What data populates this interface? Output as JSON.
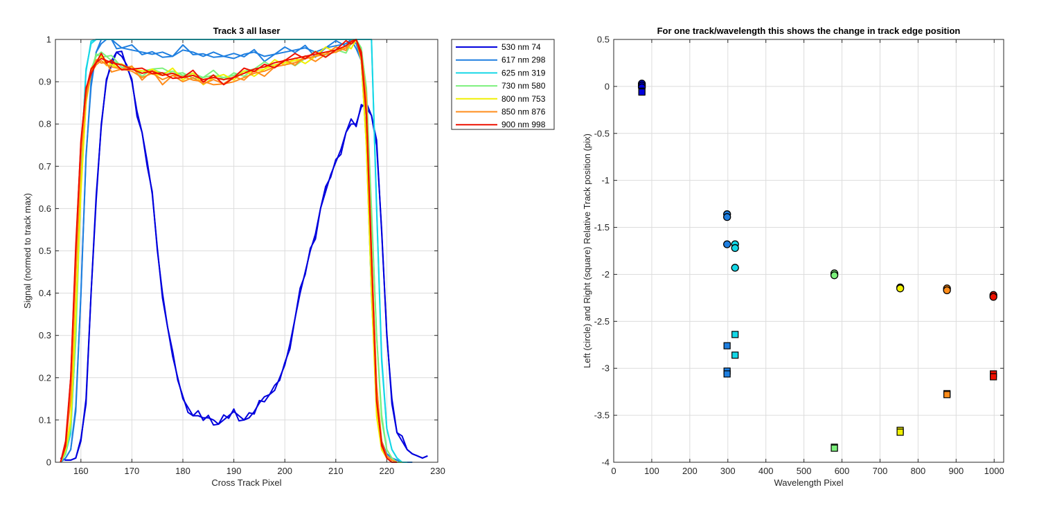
{
  "chart_data": [
    {
      "type": "line",
      "title": "Track 3  all laser",
      "xlabel": "Cross Track Pixel",
      "ylabel": "Signal (normed to track max)",
      "xlim": [
        155,
        230
      ],
      "ylim": [
        0,
        1
      ],
      "xticks": [
        160,
        170,
        180,
        190,
        200,
        210,
        220,
        230
      ],
      "yticks": [
        0,
        0.1,
        0.2,
        0.3,
        0.4,
        0.5,
        0.6,
        0.7,
        0.8,
        0.9,
        1
      ],
      "grid": true,
      "legend_position": "outside-top-right",
      "series": [
        {
          "name": "530 nm 74",
          "color": "#0000dd",
          "x": [
            156,
            157,
            158,
            159,
            160,
            161,
            162,
            163,
            164,
            165,
            166,
            167,
            168,
            169,
            170,
            171,
            172,
            173,
            174,
            175,
            176,
            177,
            178,
            179,
            180,
            181,
            182,
            183,
            184,
            185,
            186,
            187,
            188,
            189,
            190,
            191,
            192,
            193,
            194,
            195,
            196,
            197,
            198,
            199,
            200,
            201,
            202,
            203,
            204,
            205,
            206,
            207,
            208,
            209,
            210,
            211,
            212,
            213,
            214,
            215,
            216,
            217,
            218,
            219,
            220,
            221,
            222,
            223,
            224,
            225,
            226,
            227,
            228
          ],
          "values": [
            0.01,
            0.005,
            0.005,
            0.01,
            0.05,
            0.15,
            0.4,
            0.62,
            0.8,
            0.9,
            0.95,
            0.97,
            0.96,
            0.94,
            0.9,
            0.83,
            0.78,
            0.7,
            0.64,
            0.5,
            0.4,
            0.32,
            0.25,
            0.2,
            0.15,
            0.13,
            0.11,
            0.11,
            0.105,
            0.105,
            0.1,
            0.09,
            0.1,
            0.11,
            0.12,
            0.11,
            0.1,
            0.105,
            0.12,
            0.14,
            0.155,
            0.16,
            0.17,
            0.2,
            0.23,
            0.28,
            0.34,
            0.4,
            0.45,
            0.5,
            0.54,
            0.6,
            0.64,
            0.68,
            0.71,
            0.74,
            0.78,
            0.8,
            0.8,
            0.84,
            0.85,
            0.82,
            0.75,
            0.55,
            0.3,
            0.15,
            0.07,
            0.05,
            0.03,
            0.02,
            0.015,
            0.01,
            0.015
          ]
        },
        {
          "name": "617 nm 298",
          "color": "#1f7fe0",
          "x": [
            156,
            157,
            158,
            159,
            160,
            161,
            162,
            163,
            164,
            165,
            166,
            167,
            168,
            170,
            172,
            174,
            176,
            178,
            180,
            182,
            184,
            186,
            188,
            190,
            192,
            194,
            196,
            198,
            200,
            202,
            204,
            206,
            208,
            210,
            212,
            213,
            214,
            215,
            216,
            217,
            218,
            219,
            220,
            221,
            222,
            223,
            224,
            225
          ],
          "values": [
            0.0,
            0.01,
            0.03,
            0.12,
            0.4,
            0.72,
            0.9,
            0.97,
            0.99,
            1.0,
            1.0,
            0.99,
            0.98,
            0.975,
            0.97,
            0.965,
            0.97,
            0.96,
            0.975,
            0.97,
            0.96,
            0.97,
            0.96,
            0.955,
            0.965,
            0.97,
            0.96,
            0.965,
            0.97,
            0.975,
            0.98,
            0.97,
            0.98,
            0.985,
            0.99,
            1.0,
            0.99,
            0.95,
            0.75,
            0.4,
            0.15,
            0.05,
            0.02,
            0.01,
            0.005,
            0.0,
            0.0,
            0.0
          ]
        },
        {
          "name": "625 nm 319",
          "color": "#14d7e6",
          "x": [
            156,
            157,
            158,
            159,
            160,
            161,
            162,
            163,
            164,
            166,
            168,
            170,
            172,
            174,
            176,
            178,
            180,
            182,
            184,
            186,
            188,
            190,
            192,
            194,
            196,
            198,
            200,
            202,
            204,
            206,
            208,
            210,
            212,
            214,
            216,
            217,
            218,
            219,
            220,
            221,
            222,
            223,
            224
          ],
          "values": [
            0.0,
            0.02,
            0.08,
            0.3,
            0.7,
            0.93,
            0.99,
            1.0,
            1.0,
            1.0,
            1.0,
            1.0,
            1.0,
            1.0,
            1.0,
            1.0,
            1.0,
            1.0,
            1.0,
            1.0,
            1.0,
            1.0,
            1.0,
            1.0,
            1.0,
            1.0,
            1.0,
            1.0,
            1.0,
            1.0,
            1.0,
            1.0,
            1.0,
            1.0,
            1.0,
            1.0,
            0.6,
            0.25,
            0.08,
            0.03,
            0.01,
            0.0,
            0.0
          ]
        },
        {
          "name": "730 nm 580",
          "color": "#7cf07c",
          "x": [
            156,
            157,
            158,
            159,
            160,
            161,
            162,
            163,
            164,
            165,
            166,
            168,
            170,
            172,
            174,
            176,
            178,
            180,
            182,
            184,
            186,
            188,
            190,
            192,
            194,
            196,
            198,
            200,
            202,
            204,
            206,
            208,
            210,
            212,
            213,
            214,
            215,
            216,
            217,
            218,
            219,
            220,
            221,
            222,
            223
          ],
          "values": [
            0.0,
            0.02,
            0.08,
            0.3,
            0.65,
            0.85,
            0.93,
            0.96,
            0.97,
            0.96,
            0.95,
            0.94,
            0.93,
            0.925,
            0.93,
            0.92,
            0.925,
            0.915,
            0.92,
            0.91,
            0.915,
            0.91,
            0.915,
            0.925,
            0.93,
            0.935,
            0.94,
            0.945,
            0.95,
            0.955,
            0.96,
            0.965,
            0.97,
            0.98,
            0.99,
            1.0,
            0.98,
            0.88,
            0.6,
            0.3,
            0.1,
            0.03,
            0.01,
            0.0,
            0.0
          ]
        },
        {
          "name": "800 nm 753",
          "color": "#f0f000",
          "x": [
            156,
            157,
            158,
            159,
            160,
            161,
            162,
            163,
            164,
            165,
            166,
            168,
            170,
            172,
            174,
            176,
            178,
            180,
            182,
            184,
            186,
            188,
            190,
            192,
            194,
            196,
            198,
            200,
            202,
            204,
            206,
            208,
            210,
            212,
            213,
            214,
            215,
            216,
            217,
            218,
            219,
            220,
            221
          ],
          "values": [
            0.0,
            0.03,
            0.1,
            0.35,
            0.65,
            0.85,
            0.92,
            0.95,
            0.96,
            0.95,
            0.94,
            0.93,
            0.935,
            0.92,
            0.93,
            0.915,
            0.92,
            0.91,
            0.915,
            0.905,
            0.91,
            0.905,
            0.91,
            0.92,
            0.925,
            0.93,
            0.94,
            0.945,
            0.95,
            0.955,
            0.96,
            0.97,
            0.975,
            0.98,
            0.99,
            1.0,
            0.95,
            0.75,
            0.4,
            0.12,
            0.03,
            0.01,
            0.0
          ]
        },
        {
          "name": "850 nm 876",
          "color": "#ff8c1a",
          "x": [
            156,
            157,
            158,
            159,
            160,
            161,
            162,
            163,
            164,
            165,
            166,
            168,
            170,
            172,
            174,
            176,
            178,
            180,
            182,
            184,
            186,
            188,
            190,
            192,
            194,
            196,
            198,
            200,
            202,
            204,
            206,
            208,
            210,
            212,
            213,
            214,
            215,
            216,
            217,
            218,
            219,
            220,
            221,
            222
          ],
          "values": [
            0.0,
            0.04,
            0.15,
            0.45,
            0.72,
            0.87,
            0.92,
            0.94,
            0.95,
            0.94,
            0.935,
            0.93,
            0.925,
            0.91,
            0.92,
            0.905,
            0.915,
            0.9,
            0.91,
            0.895,
            0.905,
            0.895,
            0.9,
            0.91,
            0.92,
            0.925,
            0.935,
            0.94,
            0.945,
            0.955,
            0.96,
            0.965,
            0.97,
            0.98,
            0.99,
            1.0,
            0.97,
            0.85,
            0.5,
            0.18,
            0.05,
            0.015,
            0.005,
            0.0
          ]
        },
        {
          "name": "900 nm 998",
          "color": "#ee1100",
          "x": [
            156,
            157,
            158,
            159,
            160,
            161,
            162,
            163,
            164,
            165,
            166,
            168,
            170,
            172,
            174,
            176,
            178,
            180,
            182,
            184,
            186,
            188,
            190,
            192,
            194,
            196,
            198,
            200,
            202,
            204,
            206,
            208,
            210,
            212,
            213,
            214,
            215,
            216,
            217,
            218,
            219,
            220,
            221,
            222
          ],
          "values": [
            0.0,
            0.05,
            0.2,
            0.5,
            0.76,
            0.88,
            0.93,
            0.945,
            0.955,
            0.95,
            0.945,
            0.94,
            0.93,
            0.92,
            0.925,
            0.915,
            0.92,
            0.91,
            0.915,
            0.905,
            0.91,
            0.905,
            0.91,
            0.92,
            0.93,
            0.935,
            0.945,
            0.95,
            0.955,
            0.96,
            0.965,
            0.97,
            0.975,
            0.985,
            0.995,
            1.0,
            0.97,
            0.82,
            0.48,
            0.15,
            0.04,
            0.01,
            0.0,
            0.0
          ]
        }
      ]
    },
    {
      "type": "scatter",
      "title": "For one track/wavelength this shows the change in track edge position",
      "xlabel": "Wavelength Pixel",
      "ylabel": "Left (circle) and Right (square) Relative Track position (pix)",
      "xlim": [
        0,
        1025
      ],
      "ylim": [
        -4,
        0.5
      ],
      "xticks": [
        0,
        100,
        200,
        300,
        400,
        500,
        600,
        700,
        800,
        900,
        1000
      ],
      "yticks": [
        0.5,
        0,
        -0.5,
        -1,
        -1.5,
        -2,
        -2.5,
        -3,
        -3.5,
        -4
      ],
      "grid": true,
      "series": [
        {
          "marker": "circle",
          "points": [
            {
              "x": 74,
              "y": 0.03,
              "color": "#0000dd"
            },
            {
              "x": 74,
              "y": 0.01,
              "color": "#0000dd"
            },
            {
              "x": 74,
              "y": -0.01,
              "color": "#0000dd"
            },
            {
              "x": 298,
              "y": -1.36,
              "color": "#1f7fe0"
            },
            {
              "x": 298,
              "y": -1.39,
              "color": "#1f7fe0"
            },
            {
              "x": 298,
              "y": -1.68,
              "color": "#1f7fe0"
            },
            {
              "x": 319,
              "y": -1.68,
              "color": "#14d7e6"
            },
            {
              "x": 319,
              "y": -1.72,
              "color": "#14d7e6"
            },
            {
              "x": 319,
              "y": -1.93,
              "color": "#14d7e6"
            },
            {
              "x": 580,
              "y": -1.99,
              "color": "#7cf07c"
            },
            {
              "x": 580,
              "y": -2.01,
              "color": "#7cf07c"
            },
            {
              "x": 753,
              "y": -2.14,
              "color": "#f0f000"
            },
            {
              "x": 753,
              "y": -2.15,
              "color": "#f0f000"
            },
            {
              "x": 876,
              "y": -2.15,
              "color": "#ff8c1a"
            },
            {
              "x": 876,
              "y": -2.17,
              "color": "#ff8c1a"
            },
            {
              "x": 998,
              "y": -2.22,
              "color": "#ee1100"
            },
            {
              "x": 998,
              "y": -2.24,
              "color": "#ee1100"
            }
          ]
        },
        {
          "marker": "square",
          "points": [
            {
              "x": 74,
              "y": -0.05,
              "color": "#0000dd"
            },
            {
              "x": 74,
              "y": -0.06,
              "color": "#0000dd"
            },
            {
              "x": 298,
              "y": -2.76,
              "color": "#1f7fe0"
            },
            {
              "x": 298,
              "y": -3.03,
              "color": "#1f7fe0"
            },
            {
              "x": 298,
              "y": -3.06,
              "color": "#1f7fe0"
            },
            {
              "x": 319,
              "y": -2.64,
              "color": "#14d7e6"
            },
            {
              "x": 319,
              "y": -2.86,
              "color": "#14d7e6"
            },
            {
              "x": 580,
              "y": -3.84,
              "color": "#7cf07c"
            },
            {
              "x": 580,
              "y": -3.85,
              "color": "#7cf07c"
            },
            {
              "x": 753,
              "y": -3.66,
              "color": "#f0f000"
            },
            {
              "x": 753,
              "y": -3.68,
              "color": "#f0f000"
            },
            {
              "x": 876,
              "y": -3.27,
              "color": "#ff8c1a"
            },
            {
              "x": 876,
              "y": -3.28,
              "color": "#ff8c1a"
            },
            {
              "x": 998,
              "y": -3.06,
              "color": "#ee1100"
            },
            {
              "x": 998,
              "y": -3.09,
              "color": "#ee1100"
            }
          ]
        }
      ]
    }
  ]
}
